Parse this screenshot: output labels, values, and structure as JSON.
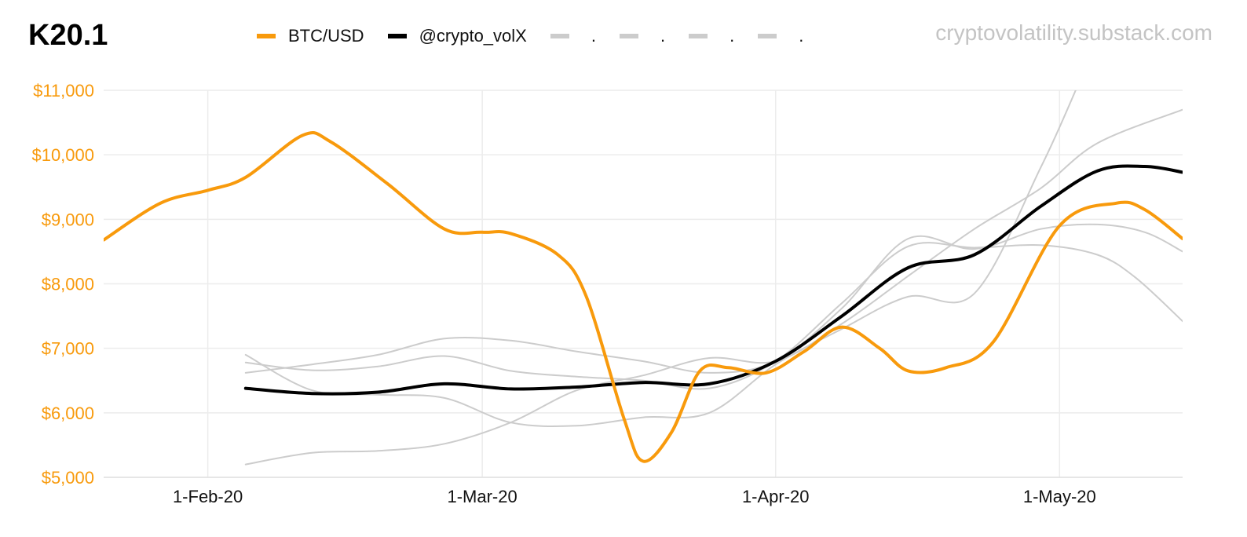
{
  "header": {
    "title": "K20.1",
    "source": "cryptovolatility.substack.com"
  },
  "legend": [
    {
      "label": "BTC/USD",
      "color": "#f89a0c",
      "style": "solid"
    },
    {
      "label": "@crypto_volX",
      "color": "#000000",
      "style": "solid"
    },
    {
      "label": ".",
      "color": "#cccccc",
      "style": "dashed"
    },
    {
      "label": ".",
      "color": "#cccccc",
      "style": "dashed"
    },
    {
      "label": ".",
      "color": "#cccccc",
      "style": "dashed"
    },
    {
      "label": ".",
      "color": "#cccccc",
      "style": "dashed"
    }
  ],
  "chart_data": {
    "type": "line",
    "title": "K20.1",
    "xlabel": "",
    "ylabel": "",
    "ylim": [
      5000,
      11000
    ],
    "xlim": [
      "2020-01-21",
      "2020-05-14"
    ],
    "y_ticks": [
      "$5,000",
      "$6,000",
      "$7,000",
      "$8,000",
      "$9,000",
      "$10,000",
      "$11,000"
    ],
    "x_ticks": [
      {
        "label": "1-Feb-20",
        "date": "2020-02-01"
      },
      {
        "label": "1-Mar-20",
        "date": "2020-03-01"
      },
      {
        "label": "1-Apr-20",
        "date": "2020-04-01"
      },
      {
        "label": "1-May-20",
        "date": "2020-05-01"
      }
    ],
    "grid": true,
    "legend_position": "top",
    "series": [
      {
        "name": "BTC/USD",
        "color": "#f89a0c",
        "width": 4,
        "points": [
          [
            "2020-01-21",
            8680
          ],
          [
            "2020-01-27",
            9250
          ],
          [
            "2020-02-01",
            9450
          ],
          [
            "2020-02-05",
            9650
          ],
          [
            "2020-02-11",
            10300
          ],
          [
            "2020-02-14",
            10200
          ],
          [
            "2020-02-20",
            9550
          ],
          [
            "2020-02-26",
            8850
          ],
          [
            "2020-03-01",
            8800
          ],
          [
            "2020-03-04",
            8780
          ],
          [
            "2020-03-09",
            8450
          ],
          [
            "2020-03-12",
            7800
          ],
          [
            "2020-03-16",
            5900
          ],
          [
            "2020-03-18",
            5250
          ],
          [
            "2020-03-21",
            5700
          ],
          [
            "2020-03-24",
            6650
          ],
          [
            "2020-03-27",
            6700
          ],
          [
            "2020-03-31",
            6620
          ],
          [
            "2020-04-04",
            6950
          ],
          [
            "2020-04-08",
            7330
          ],
          [
            "2020-04-12",
            7000
          ],
          [
            "2020-04-15",
            6650
          ],
          [
            "2020-04-19",
            6700
          ],
          [
            "2020-04-24",
            7100
          ],
          [
            "2020-05-01",
            8900
          ],
          [
            "2020-05-07",
            9250
          ],
          [
            "2020-05-10",
            9150
          ],
          [
            "2020-05-14",
            8700
          ]
        ]
      },
      {
        "name": "@crypto_volX",
        "color": "#000000",
        "width": 4,
        "points": [
          [
            "2020-02-05",
            6380
          ],
          [
            "2020-02-12",
            6300
          ],
          [
            "2020-02-19",
            6320
          ],
          [
            "2020-02-26",
            6450
          ],
          [
            "2020-03-04",
            6370
          ],
          [
            "2020-03-11",
            6400
          ],
          [
            "2020-03-18",
            6470
          ],
          [
            "2020-03-25",
            6450
          ],
          [
            "2020-04-01",
            6800
          ],
          [
            "2020-04-08",
            7500
          ],
          [
            "2020-04-15",
            8250
          ],
          [
            "2020-04-22",
            8450
          ],
          [
            "2020-04-29",
            9200
          ],
          [
            "2020-05-05",
            9750
          ],
          [
            "2020-05-10",
            9820
          ],
          [
            "2020-05-14",
            9730
          ]
        ]
      },
      {
        "color": "#cccccc",
        "width": 2,
        "points": [
          [
            "2020-02-05",
            6900
          ],
          [
            "2020-02-12",
            6350
          ],
          [
            "2020-02-19",
            6280
          ],
          [
            "2020-02-26",
            6230
          ],
          [
            "2020-03-04",
            5850
          ],
          [
            "2020-03-11",
            5800
          ],
          [
            "2020-03-18",
            5930
          ],
          [
            "2020-03-25",
            6000
          ],
          [
            "2020-04-01",
            6750
          ],
          [
            "2020-04-08",
            7300
          ],
          [
            "2020-04-15",
            7800
          ],
          [
            "2020-04-22",
            7850
          ],
          [
            "2020-04-29",
            9800
          ],
          [
            "2020-05-03",
            11100
          ]
        ]
      },
      {
        "color": "#cccccc",
        "width": 2,
        "points": [
          [
            "2020-02-05",
            6780
          ],
          [
            "2020-02-12",
            6660
          ],
          [
            "2020-02-19",
            6720
          ],
          [
            "2020-02-26",
            6880
          ],
          [
            "2020-03-04",
            6650
          ],
          [
            "2020-03-11",
            6560
          ],
          [
            "2020-03-18",
            6500
          ],
          [
            "2020-03-25",
            6380
          ],
          [
            "2020-04-01",
            6800
          ],
          [
            "2020-04-08",
            7700
          ],
          [
            "2020-04-15",
            8580
          ],
          [
            "2020-04-22",
            8560
          ],
          [
            "2020-04-29",
            8600
          ],
          [
            "2020-05-05",
            8450
          ],
          [
            "2020-05-09",
            8100
          ],
          [
            "2020-05-14",
            7420
          ]
        ]
      },
      {
        "color": "#cccccc",
        "width": 2,
        "points": [
          [
            "2020-02-05",
            6620
          ],
          [
            "2020-02-12",
            6750
          ],
          [
            "2020-02-19",
            6900
          ],
          [
            "2020-02-26",
            7150
          ],
          [
            "2020-03-04",
            7120
          ],
          [
            "2020-03-11",
            6950
          ],
          [
            "2020-03-18",
            6800
          ],
          [
            "2020-03-25",
            6620
          ],
          [
            "2020-04-01",
            6800
          ],
          [
            "2020-04-08",
            7620
          ],
          [
            "2020-04-15",
            8700
          ],
          [
            "2020-04-22",
            8540
          ],
          [
            "2020-04-29",
            8850
          ],
          [
            "2020-05-05",
            8920
          ],
          [
            "2020-05-10",
            8800
          ],
          [
            "2020-05-14",
            8500
          ]
        ]
      },
      {
        "color": "#cccccc",
        "width": 2,
        "points": [
          [
            "2020-02-05",
            5200
          ],
          [
            "2020-02-12",
            5380
          ],
          [
            "2020-02-19",
            5410
          ],
          [
            "2020-02-26",
            5520
          ],
          [
            "2020-03-04",
            5850
          ],
          [
            "2020-03-11",
            6350
          ],
          [
            "2020-03-18",
            6580
          ],
          [
            "2020-03-25",
            6850
          ],
          [
            "2020-04-01",
            6800
          ],
          [
            "2020-04-08",
            7380
          ],
          [
            "2020-04-15",
            8120
          ],
          [
            "2020-04-22",
            8850
          ],
          [
            "2020-04-29",
            9480
          ],
          [
            "2020-05-05",
            10180
          ],
          [
            "2020-05-14",
            10700
          ]
        ]
      }
    ]
  }
}
